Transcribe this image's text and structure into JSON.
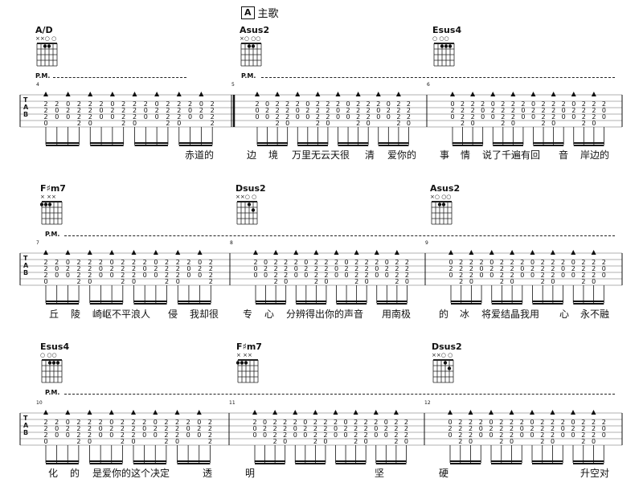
{
  "section": {
    "marker": "A",
    "title": "主歌"
  },
  "pm_label": "P.M.",
  "tab_label": [
    "T",
    "A",
    "B"
  ],
  "chords": [
    {
      "name": "A/D",
      "marks": "××○   ○",
      "dots": [
        [
          2,
          1
        ],
        [
          3,
          1
        ]
      ]
    },
    {
      "name": "Asus2",
      "marks": "×○   ○○",
      "dots": [
        [
          2,
          1
        ],
        [
          3,
          1
        ]
      ]
    },
    {
      "name": "Esus4",
      "marks": "○     ○○",
      "dots": [
        [
          2,
          1
        ],
        [
          3,
          1
        ],
        [
          4,
          1
        ]
      ]
    },
    {
      "name": "F♯m7",
      "marks": "×  ××",
      "dots": [
        [
          0,
          1
        ],
        [
          1,
          1
        ],
        [
          2,
          1
        ]
      ]
    },
    {
      "name": "Dsus2",
      "marks": "××○   ○",
      "dots": [
        [
          3,
          1
        ],
        [
          4,
          2
        ]
      ]
    },
    {
      "name": "Asus2",
      "marks": "×○   ○○",
      "dots": [
        [
          2,
          1
        ],
        [
          3,
          1
        ]
      ]
    },
    {
      "name": "Esus4",
      "marks": "○     ○○",
      "dots": [
        [
          2,
          1
        ],
        [
          3,
          1
        ],
        [
          4,
          1
        ]
      ]
    },
    {
      "name": "F♯m7",
      "marks": "×  ××",
      "dots": [
        [
          0,
          1
        ],
        [
          1,
          1
        ],
        [
          2,
          1
        ]
      ]
    },
    {
      "name": "Dsus2",
      "marks": "××○   ○",
      "dots": [
        [
          3,
          1
        ],
        [
          4,
          2
        ]
      ]
    }
  ],
  "measure_numbers": [
    "4",
    "5",
    "6",
    "7",
    "8",
    "9",
    "10",
    "11",
    "12"
  ],
  "lyrics_row1": [
    {
      "t": "赤道的"
    },
    {
      "t": "边"
    },
    {
      "t": "境"
    },
    {
      "t": "万里无云天很"
    },
    {
      "t": "清"
    },
    {
      "t": "爱你的"
    },
    {
      "t": "事"
    },
    {
      "t": "情"
    },
    {
      "t": "说了千遍有回"
    },
    {
      "t": "音"
    },
    {
      "t": "岸边的"
    }
  ],
  "lyrics_row2": [
    {
      "t": "丘"
    },
    {
      "t": "陵"
    },
    {
      "t": "崎岖不平浪人"
    },
    {
      "t": "侵"
    },
    {
      "t": "我却很"
    },
    {
      "t": "专"
    },
    {
      "t": "心"
    },
    {
      "t": "分辨得出你的声音"
    },
    {
      "t": "用南极"
    },
    {
      "t": "的"
    },
    {
      "t": "冰"
    },
    {
      "t": "将爱结晶我用"
    },
    {
      "t": "心"
    },
    {
      "t": "永不融"
    }
  ],
  "lyrics_row3": [
    {
      "t": "化"
    },
    {
      "t": "的"
    },
    {
      "t": "是爱你的这个决定"
    },
    {
      "t": "透"
    },
    {
      "t": "明"
    },
    {
      "t": "坚"
    },
    {
      "t": "硬"
    },
    {
      "t": "升空对"
    }
  ]
}
